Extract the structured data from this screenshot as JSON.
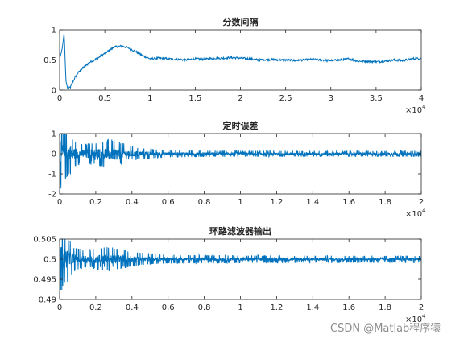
{
  "watermark": "CSDN @Matlab程序猿",
  "colors": {
    "line": "#0072BD",
    "axis": "#262626",
    "background": "#ffffff"
  },
  "chart_data": [
    {
      "type": "line",
      "title": "分数间隔",
      "xlim": [
        0,
        40000
      ],
      "ylim": [
        0,
        1
      ],
      "xticks": [
        0,
        5000,
        10000,
        15000,
        20000,
        25000,
        30000,
        35000,
        40000
      ],
      "xtick_labels": [
        "0",
        "0.5",
        "1",
        "1.5",
        "2",
        "2.5",
        "3",
        "3.5",
        "4"
      ],
      "yticks": [
        0,
        0.5,
        1
      ],
      "ytick_labels": [
        "0",
        "0.5",
        "1"
      ],
      "x_multiplier": {
        "base": "×10",
        "exp": "4"
      },
      "series": [
        {
          "points": [
            [
              0,
              0.52
            ],
            [
              150,
              0.6
            ],
            [
              300,
              0.7
            ],
            [
              500,
              0.95
            ],
            [
              700,
              0.15
            ],
            [
              900,
              0.02
            ],
            [
              1200,
              0.05
            ],
            [
              1600,
              0.18
            ],
            [
              2000,
              0.28
            ],
            [
              2600,
              0.37
            ],
            [
              3300,
              0.46
            ],
            [
              4200,
              0.53
            ],
            [
              5200,
              0.63
            ],
            [
              6000,
              0.71
            ],
            [
              6800,
              0.73
            ],
            [
              7600,
              0.7
            ],
            [
              8400,
              0.64
            ],
            [
              9200,
              0.57
            ],
            [
              10000,
              0.52
            ],
            [
              11000,
              0.53
            ],
            [
              12000,
              0.52
            ],
            [
              13000,
              0.51
            ],
            [
              14000,
              0.5
            ],
            [
              15000,
              0.52
            ],
            [
              16000,
              0.51
            ],
            [
              17000,
              0.53
            ],
            [
              18000,
              0.53
            ],
            [
              19000,
              0.54
            ],
            [
              20000,
              0.53
            ],
            [
              21000,
              0.52
            ],
            [
              22000,
              0.5
            ],
            [
              23000,
              0.51
            ],
            [
              24000,
              0.5
            ],
            [
              25000,
              0.5
            ],
            [
              26000,
              0.49
            ],
            [
              27000,
              0.5
            ],
            [
              28000,
              0.51
            ],
            [
              29000,
              0.5
            ],
            [
              30000,
              0.49
            ],
            [
              31000,
              0.5
            ],
            [
              32000,
              0.52
            ],
            [
              33000,
              0.48
            ],
            [
              34000,
              0.48
            ],
            [
              35000,
              0.47
            ],
            [
              36000,
              0.48
            ],
            [
              37000,
              0.5
            ],
            [
              38000,
              0.49
            ],
            [
              39000,
              0.52
            ],
            [
              40000,
              0.53
            ]
          ]
        }
      ]
    },
    {
      "type": "line",
      "title": "定时误差",
      "xlim": [
        0,
        20000
      ],
      "ylim": [
        -2,
        1
      ],
      "xticks": [
        0,
        2000,
        4000,
        6000,
        8000,
        10000,
        12000,
        14000,
        16000,
        18000,
        20000
      ],
      "xtick_labels": [
        "0",
        "0.2",
        "0.4",
        "0.6",
        "0.8",
        "1",
        "1.2",
        "1.4",
        "1.6",
        "1.8",
        "2"
      ],
      "yticks": [
        -2,
        -1,
        0,
        1
      ],
      "ytick_labels": [
        "-2",
        "-1",
        "0",
        "1"
      ],
      "x_multiplier": {
        "base": "×10",
        "exp": "4"
      },
      "series": [
        {
          "center": 0,
          "envelope": [
            [
              0,
              1.9
            ],
            [
              400,
              1.3
            ],
            [
              800,
              0.7
            ],
            [
              1200,
              0.5
            ],
            [
              2000,
              0.6
            ],
            [
              2800,
              0.75
            ],
            [
              3600,
              0.5
            ],
            [
              4400,
              0.3
            ],
            [
              6000,
              0.18
            ],
            [
              8000,
              0.16
            ],
            [
              12000,
              0.15
            ],
            [
              20000,
              0.15
            ]
          ],
          "min_dip": [
            [
              0,
              -1.9
            ],
            [
              300,
              -1.6
            ],
            [
              700,
              -1.0
            ],
            [
              1200,
              -0.5
            ],
            [
              2000,
              -0.3
            ],
            [
              20000,
              -0.15
            ]
          ]
        }
      ]
    },
    {
      "type": "line",
      "title": "环路滤波器输出",
      "xlim": [
        0,
        20000
      ],
      "ylim": [
        0.49,
        0.505
      ],
      "xticks": [
        0,
        2000,
        4000,
        6000,
        8000,
        10000,
        12000,
        14000,
        16000,
        18000,
        20000
      ],
      "xtick_labels": [
        "0",
        "0.2",
        "0.4",
        "0.6",
        "0.8",
        "1",
        "1.2",
        "1.4",
        "1.6",
        "1.8",
        "2"
      ],
      "yticks": [
        0.49,
        0.495,
        0.5,
        0.505
      ],
      "ytick_labels": [
        "0.49",
        "0.495",
        "0.5",
        "0.505"
      ],
      "x_multiplier": {
        "base": "×10",
        "exp": "4"
      },
      "series": [
        {
          "center": 0.5,
          "envelope": [
            [
              0,
              0.009
            ],
            [
              400,
              0.006
            ],
            [
              800,
              0.003
            ],
            [
              1500,
              0.0022
            ],
            [
              2500,
              0.0032
            ],
            [
              3500,
              0.0025
            ],
            [
              4500,
              0.0015
            ],
            [
              6000,
              0.0011
            ],
            [
              10000,
              0.001
            ],
            [
              14000,
              0.0009
            ],
            [
              20000,
              0.0009
            ]
          ],
          "min_dip": [
            [
              0,
              0.49
            ],
            [
              300,
              0.4925
            ],
            [
              700,
              0.496
            ],
            [
              1200,
              0.498
            ],
            [
              20000,
              0.499
            ]
          ]
        }
      ]
    }
  ]
}
